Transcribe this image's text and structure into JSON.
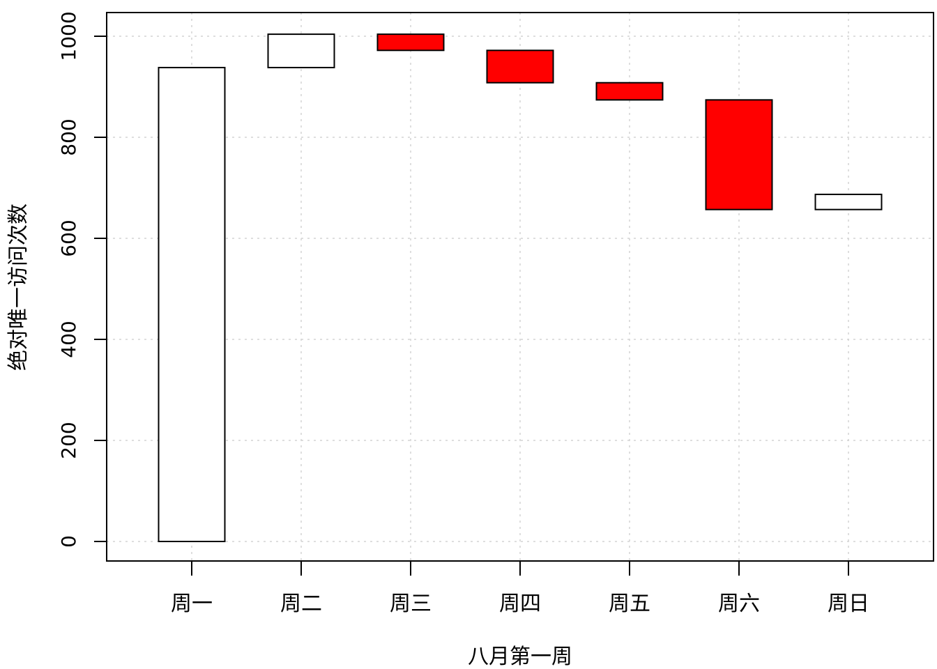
{
  "chart_data": {
    "type": "bar",
    "subtype": "waterfall",
    "xlabel": "八月第一周",
    "ylabel": "绝对唯一访问次数",
    "categories": [
      "周一",
      "周二",
      "周三",
      "周四",
      "周五",
      "周六",
      "周日"
    ],
    "bars": [
      {
        "category": "周一",
        "start": 0,
        "end": 938,
        "change": 938,
        "color": "#ffffff"
      },
      {
        "category": "周二",
        "start": 938,
        "end": 1004,
        "change": 66,
        "color": "#ffffff"
      },
      {
        "category": "周三",
        "start": 1004,
        "end": 972,
        "change": -32,
        "color": "#ff0000"
      },
      {
        "category": "周四",
        "start": 972,
        "end": 908,
        "change": -64,
        "color": "#ff0000"
      },
      {
        "category": "周五",
        "start": 908,
        "end": 874,
        "change": -34,
        "color": "#ff0000"
      },
      {
        "category": "周六",
        "start": 874,
        "end": 657,
        "change": -217,
        "color": "#ff0000"
      },
      {
        "category": "周日",
        "start": 657,
        "end": 687,
        "change": 30,
        "color": "#ffffff"
      }
    ],
    "yticks": [
      "0",
      "200",
      "400",
      "600",
      "800",
      "1000"
    ],
    "ylim": [
      -40,
      1045
    ],
    "grid": true,
    "colors": {
      "increase": "#ffffff",
      "decrease": "#ff0000",
      "border": "#000000",
      "grid": "#d3d3d3"
    }
  }
}
